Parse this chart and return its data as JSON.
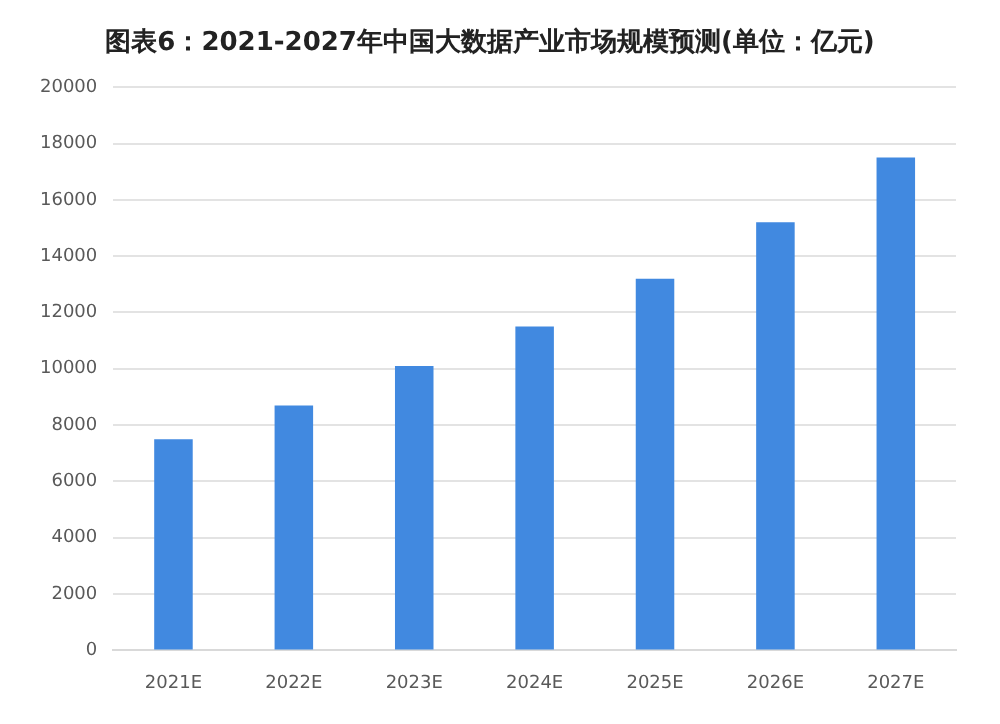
{
  "chart_data": {
    "type": "bar",
    "title": "图表6：2021-2027年中国大数据产业市场规模预测(单位：亿元)",
    "categories": [
      "2021E",
      "2022E",
      "2023E",
      "2024E",
      "2025E",
      "2026E",
      "2027E"
    ],
    "values": [
      7500,
      8700,
      10100,
      11500,
      13200,
      15200,
      17500
    ],
    "color": "#4189e0",
    "ylim": [
      0,
      20000
    ],
    "yticks": [
      0,
      2000,
      4000,
      6000,
      8000,
      10000,
      12000,
      14000,
      16000,
      18000,
      20000
    ],
    "grid": "y",
    "legend": false
  }
}
